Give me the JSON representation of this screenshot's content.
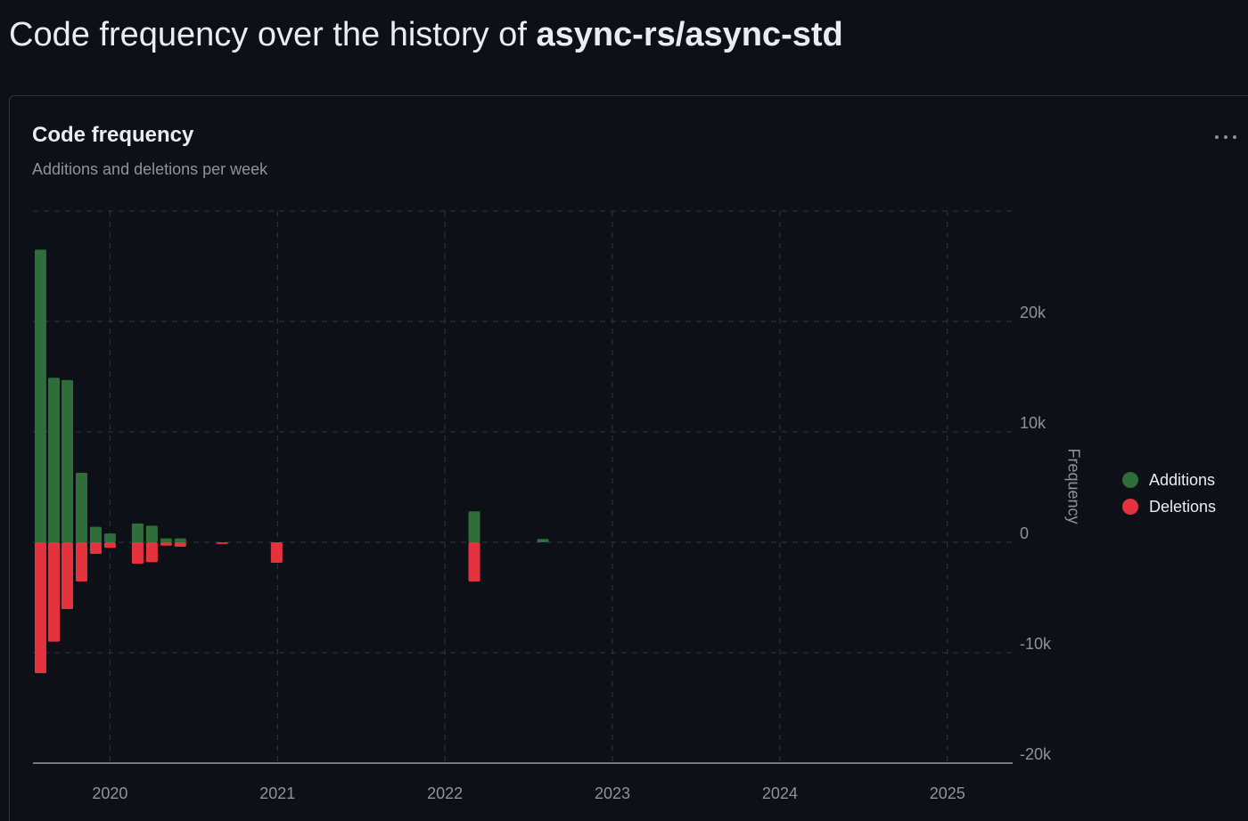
{
  "header": {
    "prefix": "Code frequency over the history of",
    "repo": "async-rs/async-std"
  },
  "chart_data": {
    "type": "bar",
    "title": "Code frequency",
    "subtitle": "Additions and deletions per week",
    "y_label": "Frequency",
    "x": [
      2019.585,
      2019.665,
      2019.745,
      2019.83,
      2019.915,
      2020.0,
      2020.165,
      2020.25,
      2020.335,
      2020.42,
      2020.67,
      2020.995,
      2022.175,
      2022.585
    ],
    "series": [
      {
        "name": "Additions",
        "color": "#2f6d3a",
        "values": [
          26500,
          14900,
          14700,
          6300,
          1400,
          800,
          1700,
          1500,
          350,
          350,
          0,
          0,
          2800,
          300
        ]
      },
      {
        "name": "Deletions",
        "color": "#e5323f",
        "values": [
          -11850,
          -9000,
          -6050,
          -3550,
          -1050,
          -500,
          -1950,
          -1800,
          -300,
          -400,
          -150,
          -1850,
          -3550,
          0
        ]
      }
    ],
    "xlim": [
      2019.54,
      2025.39
    ],
    "xticks": [
      2020,
      2021,
      2022,
      2023,
      2024,
      2025
    ],
    "ylim": [
      -20000,
      30000
    ],
    "yticks": [
      {
        "value": -20000,
        "label": "-20k"
      },
      {
        "value": -10000,
        "label": "-10k"
      },
      0,
      {
        "value": 10000,
        "label": "10k"
      },
      {
        "value": 20000,
        "label": "20k"
      }
    ],
    "grid": true,
    "legend": "right"
  }
}
